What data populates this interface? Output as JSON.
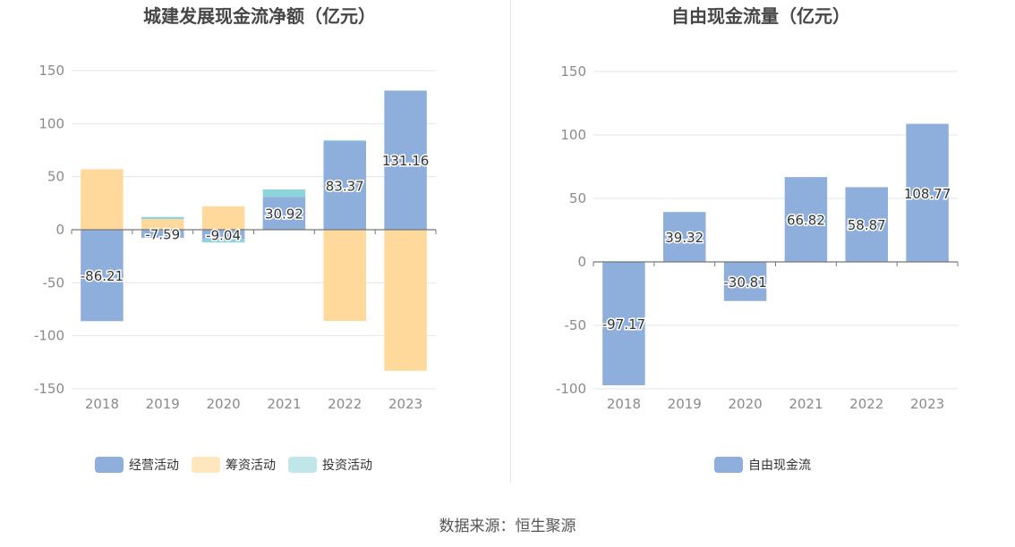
{
  "source_label": "数据来源：恒生聚源",
  "colors": {
    "operating": "#8eaedc",
    "financing": "#ffd99b",
    "investing": "#8dd3da",
    "free_cf": "#8eaedc"
  },
  "chart_data": [
    {
      "type": "bar",
      "stacked": true,
      "title": "城建发展现金流净额（亿元）",
      "categories": [
        "2018",
        "2019",
        "2020",
        "2021",
        "2022",
        "2023"
      ],
      "ylim": [
        -150,
        150
      ],
      "yticks": [
        150,
        100,
        50,
        0,
        -50,
        -100,
        -150
      ],
      "grid": true,
      "legend_position": "bottom",
      "series": [
        {
          "name": "经营活动",
          "values": [
            -86.21,
            -7.59,
            -9.04,
            30.92,
            83.37,
            131.16
          ],
          "labels": [
            "-86.21",
            "-7.59",
            "-9.04",
            "30.92",
            "83.37",
            "131.16"
          ]
        },
        {
          "name": "筹资活动",
          "values": [
            57,
            10,
            22,
            0,
            -86,
            -133
          ]
        },
        {
          "name": "投资活动",
          "values": [
            0,
            2,
            -3,
            7,
            1,
            0
          ]
        }
      ]
    },
    {
      "type": "bar",
      "title": "自由现金流量（亿元）",
      "categories": [
        "2018",
        "2019",
        "2020",
        "2021",
        "2022",
        "2023"
      ],
      "ylim": [
        -100,
        150
      ],
      "yticks": [
        150,
        100,
        50,
        0,
        -50,
        -100
      ],
      "grid": true,
      "legend_position": "bottom",
      "series": [
        {
          "name": "自由现金流",
          "values": [
            -97.17,
            39.32,
            -30.81,
            66.82,
            58.87,
            108.77
          ],
          "labels": [
            "-97.17",
            "39.32",
            "-30.81",
            "66.82",
            "58.87",
            "108.77"
          ]
        }
      ]
    }
  ]
}
